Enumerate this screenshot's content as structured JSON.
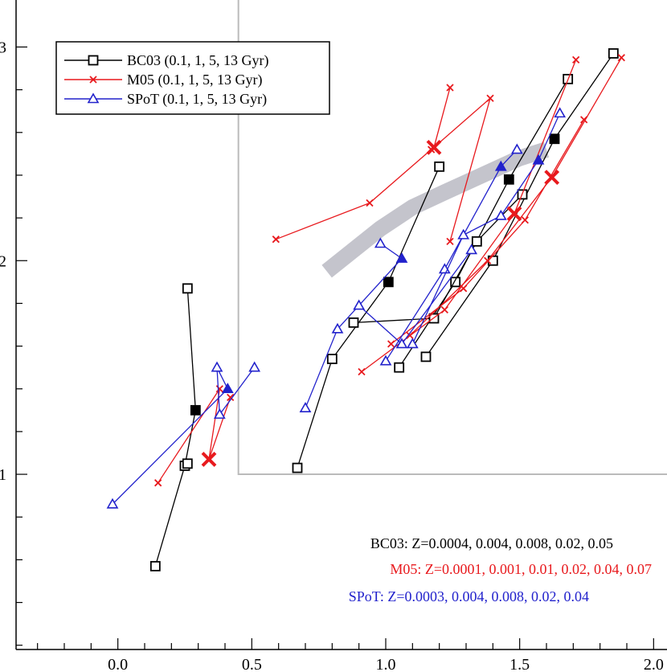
{
  "chart_data": {
    "type": "line",
    "xlim": [
      -0.38,
      2.05
    ],
    "ylim": [
      0.18,
      3.22
    ],
    "x_ticks": [
      "0.0",
      "0.5",
      "1.0",
      "1.5",
      "2.0"
    ],
    "x_tick_values": [
      0.0,
      0.5,
      1.0,
      1.5,
      2.0
    ],
    "y_ticks": [
      "1",
      "2",
      "3"
    ],
    "y_tick_values": [
      1,
      2,
      3
    ],
    "grid": false,
    "legend_position": "top-left",
    "colors": {
      "BC03": "#000000",
      "M05": "#e8191d",
      "SPoT": "#2222cc",
      "region": "#bbbbbb",
      "band": "#c4c4cc"
    },
    "legend": [
      {
        "key": "BC03",
        "label": "BC03 (0.1, 1, 5, 13 Gyr)",
        "marker": "square"
      },
      {
        "key": "M05",
        "label": "M05 (0.1, 1, 5, 13 Gyr)",
        "marker": "x"
      },
      {
        "key": "SPoT",
        "label": "SPoT (0.1, 1, 5, 13 Gyr)",
        "marker": "triangle"
      }
    ],
    "notes": [
      {
        "key": "BC03",
        "text": "BC03: Z=0.0004, 0.004, 0.008, 0.02, 0.05"
      },
      {
        "key": "M05",
        "text": "M05: Z=0.0001, 0.001, 0.01, 0.02, 0.04, 0.07"
      },
      {
        "key": "SPoT",
        "text": "SPoT: Z=0.0003, 0.004, 0.008, 0.02, 0.04"
      }
    ],
    "region": {
      "x0": 0.45,
      "y0": 1.0
    },
    "band": [
      [
        0.78,
        1.95
      ],
      [
        0.88,
        2.05
      ],
      [
        0.98,
        2.15
      ],
      [
        1.1,
        2.25
      ],
      [
        1.22,
        2.32
      ],
      [
        1.36,
        2.4
      ],
      [
        1.5,
        2.48
      ],
      [
        1.6,
        2.52
      ]
    ],
    "series": [
      {
        "model": "BC03",
        "tracks": [
          {
            "points": [
              [
                0.26,
                1.87
              ],
              [
                0.29,
                1.3
              ],
              [
                0.25,
                1.04
              ],
              [
                0.14,
                0.57
              ]
            ],
            "filled": [
              1
            ]
          },
          {
            "points": [
              [
                0.26,
                1.05
              ]
            ],
            "filled": []
          },
          {
            "points": [
              [
                1.2,
                2.44
              ],
              [
                1.01,
                1.9
              ],
              [
                0.8,
                1.54
              ],
              [
                0.67,
                1.03
              ]
            ],
            "filled": [
              1
            ]
          },
          {
            "points": [
              [
                1.68,
                2.85
              ],
              [
                1.46,
                2.38
              ],
              [
                1.26,
                1.9
              ],
              [
                1.05,
                1.5
              ]
            ],
            "filled": [
              1
            ]
          },
          {
            "points": [
              [
                1.85,
                2.97
              ],
              [
                1.63,
                2.57
              ],
              [
                1.4,
                2.0
              ],
              [
                1.15,
                1.55
              ]
            ],
            "filled": [
              1
            ]
          },
          {
            "points": [
              [
                1.51,
                2.31
              ],
              [
                1.34,
                2.09
              ],
              [
                1.18,
                1.73
              ],
              [
                0.88,
                1.71
              ]
            ],
            "filled": []
          }
        ]
      },
      {
        "model": "M05",
        "tracks": [
          {
            "points": [
              [
                0.42,
                1.36
              ],
              [
                0.34,
                1.07
              ],
              [
                0.38,
                1.4
              ],
              [
                0.15,
                0.96
              ]
            ],
            "big": [
              1
            ]
          },
          {
            "points": [
              [
                1.24,
                2.81
              ],
              [
                1.18,
                2.53
              ],
              [
                1.39,
                2.76
              ],
              [
                1.24,
                2.09
              ]
            ],
            "big": [
              1
            ]
          },
          {
            "points": [
              [
                0.59,
                2.1
              ],
              [
                0.94,
                2.27
              ],
              [
                1.17,
                2.52
              ]
            ],
            "big": []
          },
          {
            "points": [
              [
                1.71,
                2.94
              ],
              [
                1.48,
                2.22
              ],
              [
                1.22,
                1.77
              ],
              [
                0.91,
                1.48
              ]
            ],
            "big": [
              1
            ]
          },
          {
            "points": [
              [
                1.88,
                2.95
              ],
              [
                1.62,
                2.39
              ],
              [
                1.38,
                2.0
              ],
              [
                1.09,
                1.65
              ]
            ],
            "big": [
              1
            ]
          },
          {
            "points": [
              [
                1.74,
                2.66
              ],
              [
                1.52,
                2.19
              ],
              [
                1.29,
                1.87
              ],
              [
                1.02,
                1.61
              ]
            ],
            "big": []
          }
        ]
      },
      {
        "model": "SPoT",
        "tracks": [
          {
            "points": [
              [
                0.51,
                1.5
              ],
              [
                0.38,
                1.28
              ],
              [
                0.37,
                1.5
              ],
              [
                0.41,
                1.4
              ],
              [
                -0.02,
                0.86
              ]
            ],
            "filled": [
              3
            ]
          },
          {
            "points": [
              [
                0.98,
                2.08
              ],
              [
                1.06,
                2.01
              ],
              [
                0.82,
                1.68
              ],
              [
                0.7,
                1.31
              ]
            ],
            "filled": [
              1
            ]
          },
          {
            "points": [
              [
                1.49,
                2.52
              ],
              [
                1.43,
                2.44
              ],
              [
                1.22,
                1.96
              ],
              [
                1.0,
                1.53
              ]
            ],
            "filled": [
              1
            ]
          },
          {
            "points": [
              [
                1.65,
                2.69
              ],
              [
                1.57,
                2.47
              ],
              [
                1.43,
                2.21
              ],
              [
                1.29,
                2.12
              ],
              [
                1.1,
                1.61
              ]
            ],
            "filled": [
              1
            ]
          },
          {
            "points": [
              [
                1.32,
                2.05
              ],
              [
                1.06,
                1.61
              ],
              [
                0.9,
                1.79
              ]
            ],
            "filled": []
          }
        ]
      }
    ]
  }
}
